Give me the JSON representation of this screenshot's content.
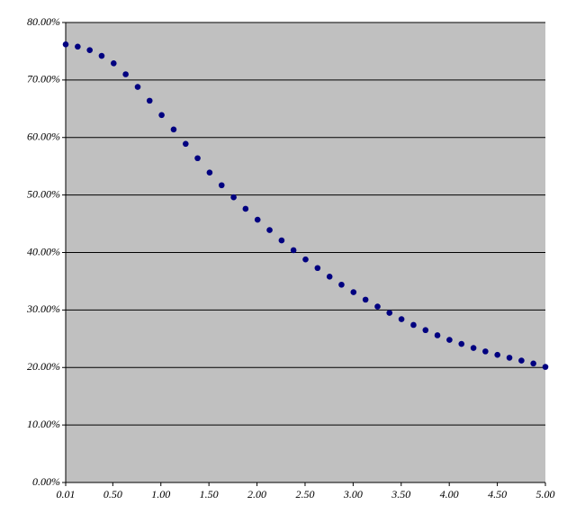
{
  "chart_data": {
    "type": "scatter",
    "x": [
      0.01,
      0.135,
      0.26,
      0.384,
      0.509,
      0.634,
      0.759,
      0.883,
      1.008,
      1.133,
      1.258,
      1.382,
      1.507,
      1.632,
      1.757,
      1.881,
      2.006,
      2.131,
      2.256,
      2.38,
      2.505,
      2.63,
      2.755,
      2.879,
      3.004,
      3.129,
      3.254,
      3.378,
      3.503,
      3.628,
      3.753,
      3.877,
      4.002,
      4.127,
      4.252,
      4.376,
      4.501,
      4.626,
      4.751,
      4.875,
      5.0
    ],
    "values": [
      76.2,
      75.8,
      75.2,
      74.2,
      72.9,
      71.0,
      68.8,
      66.4,
      63.9,
      61.4,
      58.9,
      56.4,
      53.9,
      51.7,
      49.6,
      47.6,
      45.7,
      43.9,
      42.1,
      40.4,
      38.8,
      37.3,
      35.8,
      34.4,
      33.1,
      31.8,
      30.6,
      29.5,
      28.4,
      27.4,
      26.5,
      25.6,
      24.8,
      24.1,
      23.4,
      22.8,
      22.2,
      21.7,
      21.2,
      20.7,
      20.1
    ],
    "color": "#000080",
    "xlim": [
      0.01,
      5.0
    ],
    "xticks": [
      0.01,
      {
        "value": 0.5,
        "label": "0.50"
      },
      {
        "value": 1.0,
        "label": "1.00"
      },
      {
        "value": 1.5,
        "label": "1.50"
      },
      {
        "value": 2.0,
        "label": "2.00"
      },
      {
        "value": 2.5,
        "label": "2.50"
      },
      {
        "value": 3.0,
        "label": "3.00"
      },
      {
        "value": 3.5,
        "label": "3.50"
      },
      {
        "value": 4.0,
        "label": "4.00"
      },
      {
        "value": 4.5,
        "label": "4.50"
      },
      {
        "value": 5.0,
        "label": "5.00"
      }
    ],
    "ylim": [
      0,
      80
    ],
    "yticks": [
      {
        "value": 0,
        "label": "0.00%"
      },
      {
        "value": 10,
        "label": "10.00%"
      },
      {
        "value": 20,
        "label": "20.00%"
      },
      {
        "value": 30,
        "label": "30.00%"
      },
      {
        "value": 40,
        "label": "40.00%"
      },
      {
        "value": 50,
        "label": "50.00%"
      },
      {
        "value": 60,
        "label": "60.00%"
      },
      {
        "value": 70,
        "label": "70.00%"
      },
      {
        "value": 80,
        "label": "80.00%"
      }
    ],
    "grid": true
  }
}
